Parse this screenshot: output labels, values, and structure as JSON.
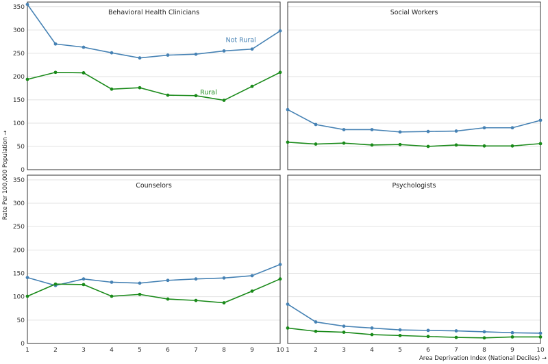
{
  "chart_data": {
    "type": "line",
    "layout": "2x2 facets",
    "ylabel": "Rate Per 100,000 Population →",
    "xlabel": "Area Deprivation Index (National Deciles) →",
    "ylim": [
      0,
      360
    ],
    "yticks": [
      0,
      50,
      100,
      150,
      200,
      250,
      300,
      350
    ],
    "xticks": [
      1,
      2,
      3,
      4,
      5,
      6,
      7,
      8,
      9,
      10
    ],
    "x": [
      1,
      2,
      3,
      4,
      5,
      6,
      7,
      8,
      9,
      10
    ],
    "colors": {
      "not_rural": "#4682b4",
      "rural": "#1a8a1a"
    },
    "series_labels": {
      "not_rural": "Not Rural",
      "rural": "Rural"
    },
    "panels": [
      {
        "title": "Behavioral Health Clinicians",
        "series": [
          {
            "name": "Not Rural",
            "values": [
              355,
              270,
              263,
              251,
              240,
              246,
              248,
              255,
              259,
              298
            ]
          },
          {
            "name": "Rural",
            "values": [
              194,
              209,
              208,
              173,
              176,
              160,
              159,
              149,
              179,
              209
            ]
          }
        ]
      },
      {
        "title": "Social Workers",
        "series": [
          {
            "name": "Not Rural",
            "values": [
              129,
              97,
              86,
              86,
              81,
              82,
              83,
              90,
              90,
              106
            ]
          },
          {
            "name": "Rural",
            "values": [
              59,
              55,
              57,
              53,
              54,
              50,
              53,
              51,
              51,
              56
            ]
          }
        ]
      },
      {
        "title": "Counselors",
        "series": [
          {
            "name": "Not Rural",
            "values": [
              141,
              124,
              138,
              131,
              129,
              135,
              138,
              140,
              145,
              169
            ]
          },
          {
            "name": "Rural",
            "values": [
              101,
              127,
              126,
              101,
              105,
              95,
              92,
              87,
              112,
              138
            ]
          }
        ]
      },
      {
        "title": "Psychologists",
        "series": [
          {
            "name": "Not Rural",
            "values": [
              84,
              46,
              37,
              33,
              29,
              28,
              27,
              25,
              23,
              22
            ]
          },
          {
            "name": "Rural",
            "values": [
              33,
              26,
              24,
              19,
              17,
              15,
              13,
              12,
              14,
              14
            ]
          }
        ]
      }
    ]
  }
}
